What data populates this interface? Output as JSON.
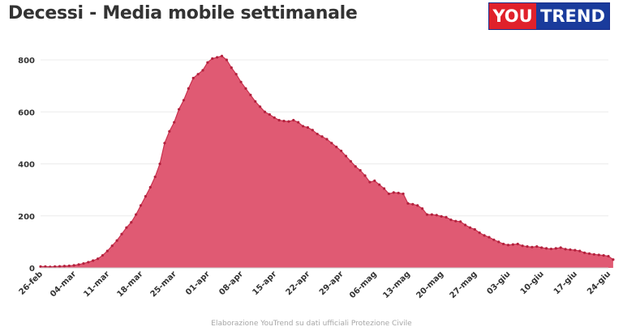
{
  "header": {
    "title": "Decessi - Media mobile settimanale",
    "logo_left": "YOU",
    "logo_right": "TREND"
  },
  "footer": {
    "source": "Elaborazione YouTrend su dati ufficiali Protezione Civile"
  },
  "colors": {
    "area_fill": "#e05a73",
    "area_stroke": "#c8324f",
    "point": "#b3213d",
    "grid": "#ececec",
    "logo_red": "#e0212b",
    "logo_blue": "#1a3b9c"
  },
  "chart_data": {
    "type": "area",
    "title": "Decessi - Media mobile settimanale",
    "ylim": [
      0,
      800
    ],
    "y_ticks": [
      0,
      200,
      400,
      600,
      800
    ],
    "grid": true,
    "x_tick_labels": [
      "26-feb",
      "04-mar",
      "11-mar",
      "18-mar",
      "25-mar",
      "01-apr",
      "08-apr",
      "15-apr",
      "22-apr",
      "29-apr",
      "06-mag",
      "13-mag",
      "20-mag",
      "27-mag",
      "03-giu",
      "10-giu",
      "17-giu",
      "24-giu"
    ],
    "x_tick_days": [
      0,
      7,
      14,
      21,
      28,
      35,
      42,
      49,
      56,
      63,
      70,
      77,
      84,
      91,
      98,
      105,
      112,
      119
    ],
    "x_range_days": [
      0,
      119
    ],
    "values": [
      5,
      5,
      4,
      5,
      6,
      7,
      8,
      10,
      13,
      17,
      22,
      28,
      35,
      48,
      65,
      85,
      105,
      130,
      155,
      175,
      205,
      240,
      275,
      310,
      350,
      400,
      480,
      525,
      560,
      610,
      645,
      690,
      730,
      745,
      760,
      790,
      805,
      810,
      815,
      800,
      770,
      745,
      715,
      690,
      665,
      640,
      620,
      600,
      590,
      578,
      568,
      565,
      563,
      568,
      560,
      545,
      540,
      530,
      515,
      505,
      495,
      480,
      465,
      450,
      430,
      410,
      390,
      375,
      355,
      330,
      335,
      320,
      305,
      285,
      290,
      288,
      285,
      248,
      245,
      240,
      228,
      205,
      205,
      203,
      198,
      195,
      185,
      180,
      178,
      165,
      155,
      148,
      135,
      125,
      118,
      108,
      100,
      92,
      88,
      90,
      92,
      85,
      82,
      80,
      82,
      78,
      75,
      73,
      75,
      78,
      72,
      70,
      68,
      65,
      58,
      55,
      52,
      50,
      48,
      45,
      32
    ]
  }
}
